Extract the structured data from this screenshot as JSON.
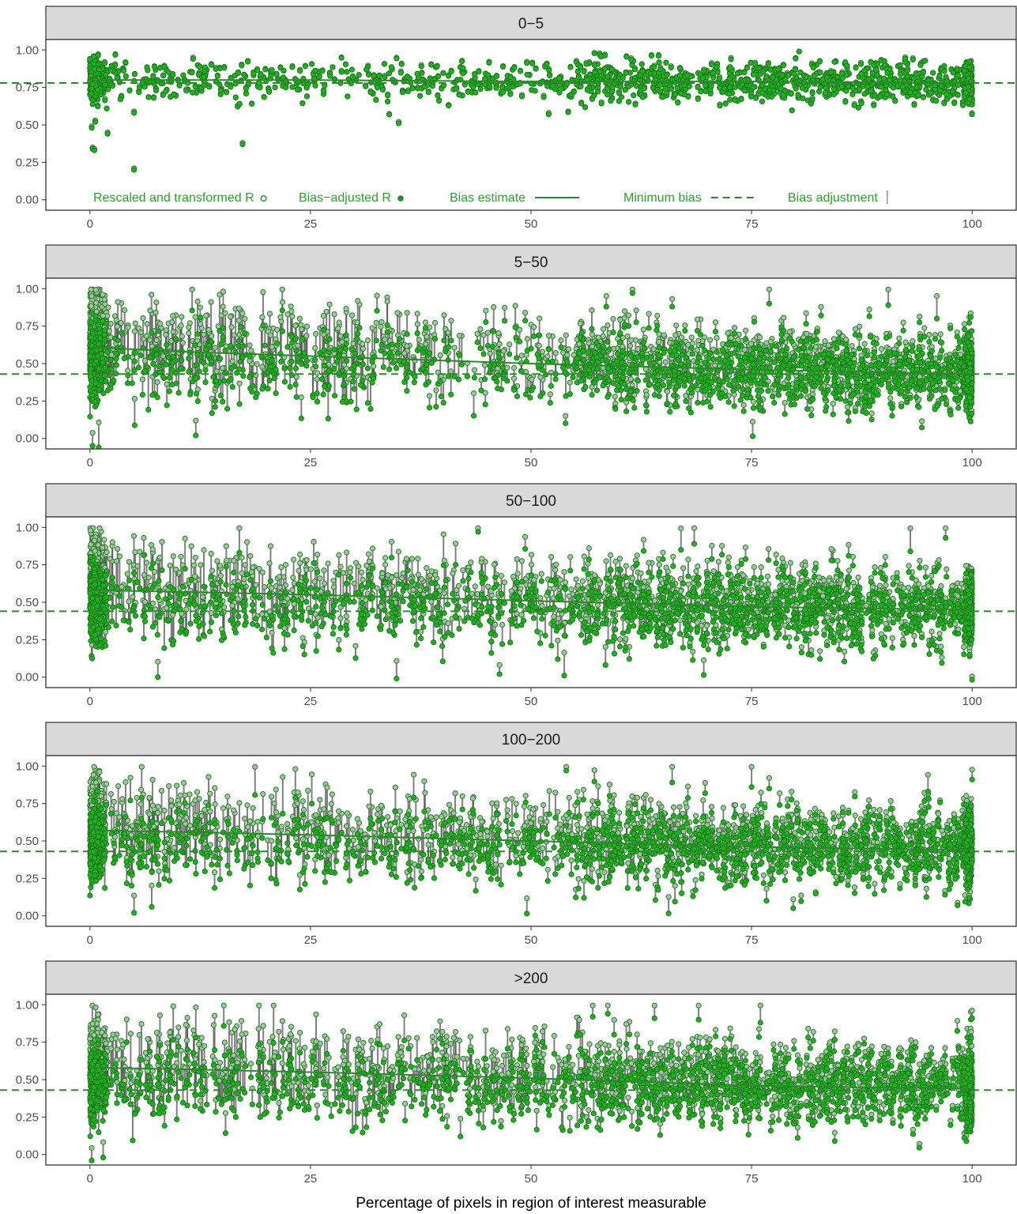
{
  "chart_data": {
    "type": "scatter",
    "xlabel": "Percentage of pixels in region of interest measurable",
    "ylabel": "",
    "xlim": [
      -5,
      105
    ],
    "ylim": [
      -0.07,
      1.07
    ],
    "x_ticks": [
      "0",
      "25",
      "50",
      "75",
      "100"
    ],
    "y_ticks": [
      "0.00",
      "0.25",
      "0.50",
      "0.75",
      "1.00"
    ],
    "grid": false,
    "legend_position": "inside-bottom of first panel",
    "legend": [
      {
        "label": "Rescaled and transformed R",
        "key": "open-circle"
      },
      {
        "label": "Bias−adjusted R",
        "key": "filled-circle"
      },
      {
        "label": "Bias estimate",
        "key": "solid-line"
      },
      {
        "label": "Minimum bias",
        "key": "dashed-line"
      },
      {
        "label": "Bias adjustment",
        "key": "vertical-segment"
      }
    ],
    "colors": {
      "points_fill": "#22b022",
      "points_edge": "#1a7a1a",
      "raw_points": "#a0c8a0",
      "segments": "#555555",
      "bias_line": "#2a8a2a",
      "strip_bg": "#d9d9d9"
    },
    "panels": [
      {
        "label": "0−5",
        "minimum_bias": 0.78,
        "bias_estimate": [
          [
            0,
            0.8
          ],
          [
            25,
            0.8
          ],
          [
            50,
            0.79
          ],
          [
            75,
            0.79
          ],
          [
            100,
            0.78
          ]
        ],
        "center_fit": [
          [
            0,
            0.8
          ],
          [
            100,
            0.78
          ]
        ],
        "spread": 0.07,
        "adjust_max": 0.01,
        "outliers": [
          [
            0.3,
            0.34
          ],
          [
            0.5,
            0.33
          ],
          [
            0.2,
            0.48
          ],
          [
            0.6,
            0.52
          ],
          [
            5,
            0.2
          ],
          [
            17.3,
            0.37
          ],
          [
            35,
            0.51
          ],
          [
            52,
            0.57
          ],
          [
            2,
            0.44
          ],
          [
            5,
            0.58
          ]
        ]
      },
      {
        "label": "5−50",
        "minimum_bias": 0.43,
        "bias_estimate": [
          [
            0,
            0.61
          ],
          [
            10,
            0.58
          ],
          [
            25,
            0.55
          ],
          [
            50,
            0.5
          ],
          [
            75,
            0.46
          ],
          [
            100,
            0.43
          ]
        ],
        "center_fit": [
          [
            0,
            0.5
          ],
          [
            25,
            0.48
          ],
          [
            50,
            0.47
          ],
          [
            75,
            0.44
          ],
          [
            100,
            0.43
          ]
        ],
        "spread": 0.13,
        "adjust_max": 0.45,
        "outliers": [
          [
            0.3,
            -0.05
          ],
          [
            1,
            -0.06
          ],
          [
            12,
            0.02
          ],
          [
            61.5,
            0.97
          ],
          [
            66,
            0.88
          ],
          [
            77,
            0.9
          ],
          [
            90.5,
            0.89
          ],
          [
            96,
            0.8
          ],
          [
            88,
            0.17
          ]
        ]
      },
      {
        "label": "50−100",
        "minimum_bias": 0.44,
        "bias_estimate": [
          [
            0,
            0.58
          ],
          [
            10,
            0.57
          ],
          [
            25,
            0.55
          ],
          [
            50,
            0.51
          ],
          [
            75,
            0.47
          ],
          [
            100,
            0.45
          ]
        ],
        "center_fit": [
          [
            0,
            0.48
          ],
          [
            25,
            0.46
          ],
          [
            50,
            0.46
          ],
          [
            75,
            0.45
          ],
          [
            100,
            0.44
          ]
        ],
        "spread": 0.13,
        "adjust_max": 0.4,
        "outliers": [
          [
            7.7,
            0.0
          ],
          [
            44,
            0.97
          ],
          [
            67,
            0.85
          ],
          [
            68.5,
            0.89
          ],
          [
            97,
            0.93
          ],
          [
            93,
            0.84
          ],
          [
            86,
            0.81
          ]
        ]
      },
      {
        "label": "100−200",
        "minimum_bias": 0.43,
        "bias_estimate": [
          [
            0,
            0.57
          ],
          [
            10,
            0.56
          ],
          [
            25,
            0.54
          ],
          [
            50,
            0.5
          ],
          [
            75,
            0.46
          ],
          [
            100,
            0.44
          ]
        ],
        "center_fit": [
          [
            0,
            0.47
          ],
          [
            25,
            0.46
          ],
          [
            50,
            0.46
          ],
          [
            75,
            0.45
          ],
          [
            100,
            0.44
          ]
        ],
        "spread": 0.13,
        "adjust_max": 0.4,
        "outliers": [
          [
            5,
            0.02
          ],
          [
            7,
            0.06
          ],
          [
            54,
            0.97
          ],
          [
            56,
            0.12
          ],
          [
            66,
            0.89
          ],
          [
            75,
            0.86
          ],
          [
            77,
            0.85
          ],
          [
            95,
            0.83
          ],
          [
            100,
            0.91
          ]
        ]
      },
      {
        "label": ">200",
        "minimum_bias": 0.43,
        "bias_estimate": [
          [
            0,
            0.58
          ],
          [
            10,
            0.57
          ],
          [
            25,
            0.55
          ],
          [
            50,
            0.51
          ],
          [
            75,
            0.46
          ],
          [
            100,
            0.44
          ]
        ],
        "center_fit": [
          [
            0,
            0.47
          ],
          [
            25,
            0.46
          ],
          [
            50,
            0.46
          ],
          [
            75,
            0.45
          ],
          [
            100,
            0.44
          ]
        ],
        "spread": 0.13,
        "adjust_max": 0.4,
        "outliers": [
          [
            0.2,
            -0.04
          ],
          [
            1.5,
            -0.02
          ],
          [
            42,
            0.12
          ],
          [
            57,
            0.92
          ],
          [
            64,
            0.91
          ],
          [
            69,
            0.9
          ],
          [
            76,
            0.88
          ],
          [
            82,
            0.76
          ],
          [
            100,
            0.91
          ]
        ]
      }
    ]
  }
}
